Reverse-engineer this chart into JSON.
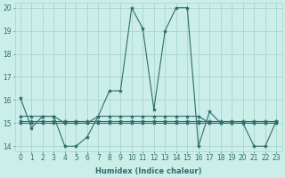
{
  "series": [
    [
      16.1,
      14.8,
      15.3,
      15.3,
      14.0,
      14.0,
      14.4,
      15.3,
      16.4,
      16.4,
      20.0,
      19.1,
      15.6,
      19.0,
      20.0,
      20.0,
      14.0,
      15.5,
      15.0,
      15.0,
      15.0,
      14.0,
      14.0,
      15.1
    ],
    [
      15.3,
      15.3,
      15.3,
      15.3,
      15.0,
      15.0,
      15.0,
      15.3,
      15.3,
      15.3,
      15.3,
      15.3,
      15.3,
      15.3,
      15.3,
      15.3,
      15.3,
      15.0,
      15.0,
      15.0,
      15.0,
      15.0,
      15.0,
      15.0
    ],
    [
      15.0,
      15.0,
      15.0,
      15.0,
      15.0,
      15.0,
      15.0,
      15.0,
      15.0,
      15.0,
      15.0,
      15.0,
      15.0,
      15.0,
      15.0,
      15.0,
      15.0,
      15.0,
      15.0,
      15.0,
      15.0,
      15.0,
      15.0,
      15.0
    ],
    [
      15.1,
      15.1,
      15.1,
      15.1,
      15.1,
      15.1,
      15.1,
      15.1,
      15.1,
      15.1,
      15.1,
      15.1,
      15.1,
      15.1,
      15.1,
      15.1,
      15.1,
      15.1,
      15.1,
      15.1,
      15.1,
      15.1,
      15.1,
      15.1
    ]
  ],
  "x": [
    0,
    1,
    2,
    3,
    4,
    5,
    6,
    7,
    8,
    9,
    10,
    11,
    12,
    13,
    14,
    15,
    16,
    17,
    18,
    19,
    20,
    21,
    22,
    23
  ],
  "line_color": "#2d6e6e",
  "marker": "*",
  "marker_size": 3,
  "bg_color": "#cceee8",
  "grid_color": "#aad4cc",
  "xlabel": "Humidex (Indice chaleur)",
  "ylim": [
    13.8,
    20.2
  ],
  "xlim": [
    -0.5,
    23.5
  ],
  "yticks": [
    14,
    15,
    16,
    17,
    18,
    19,
    20
  ],
  "xticks": [
    0,
    1,
    2,
    3,
    4,
    5,
    6,
    7,
    8,
    9,
    10,
    11,
    12,
    13,
    14,
    15,
    16,
    17,
    18,
    19,
    20,
    21,
    22,
    23
  ],
  "label_fontsize": 6,
  "tick_fontsize": 5.5
}
